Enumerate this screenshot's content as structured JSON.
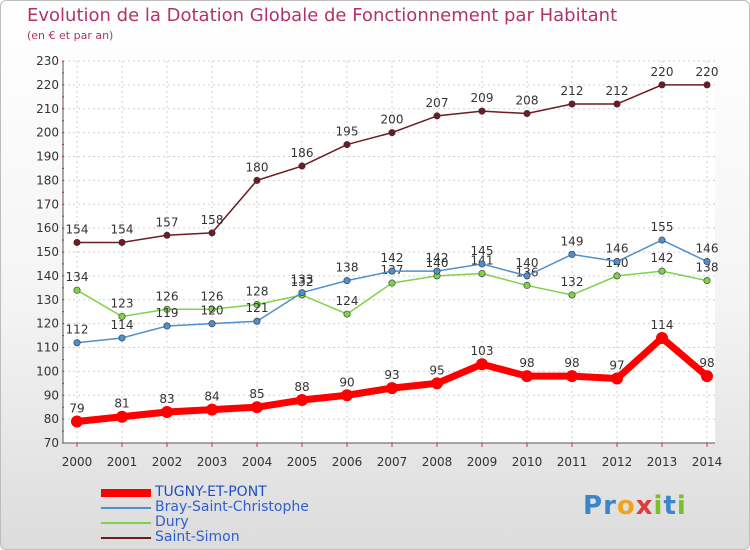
{
  "title": "Evolution de la Dotation Globale de Fonctionnement par Habitant",
  "subtitle": "(en € et par an)",
  "logo": {
    "letters": [
      {
        "ch": "P",
        "color": "#3a86c8"
      },
      {
        "ch": "r",
        "color": "#3a86c8"
      },
      {
        "ch": "o",
        "color": "#f0a31d"
      },
      {
        "ch": "x",
        "color": "#e23a3a"
      },
      {
        "ch": "i",
        "color": "#7bbf2a"
      },
      {
        "ch": "t",
        "color": "#3a86c8"
      },
      {
        "ch": "i",
        "color": "#7bbf2a"
      }
    ]
  },
  "chart_data": {
    "type": "line",
    "title": "Evolution de la Dotation Globale de Fonctionnement par Habitant",
    "subtitle": "(en € et par an)",
    "xlabel": "",
    "ylabel": "",
    "x": [
      "2000",
      "2001",
      "2002",
      "2003",
      "2004",
      "2005",
      "2006",
      "2007",
      "2008",
      "2009",
      "2010",
      "2011",
      "2012",
      "2013",
      "2014"
    ],
    "ylim": [
      70,
      230
    ],
    "yticks": [
      70,
      80,
      90,
      100,
      110,
      120,
      130,
      140,
      150,
      160,
      170,
      180,
      190,
      200,
      210,
      220,
      230
    ],
    "grid": true,
    "legend_position": "bottom-left",
    "series": [
      {
        "name": "TUGNY-ET-PONT",
        "color": "#ff0000",
        "values": [
          79,
          81,
          83,
          84,
          85,
          88,
          90,
          93,
          95,
          103,
          98,
          98,
          97,
          114,
          98
        ]
      },
      {
        "name": "Bray-Saint-Christophe",
        "color": "#4f8fcf",
        "values": [
          112,
          114,
          119,
          120,
          121,
          133,
          138,
          142,
          142,
          145,
          140,
          149,
          146,
          155,
          146
        ]
      },
      {
        "name": "Dury",
        "color": "#7fd24a",
        "values": [
          134,
          123,
          126,
          126,
          128,
          132,
          124,
          137,
          140,
          141,
          136,
          132,
          140,
          142,
          138
        ]
      },
      {
        "name": "Saint-Simon",
        "color": "#6e1c22",
        "values": [
          154,
          154,
          157,
          158,
          180,
          186,
          195,
          200,
          207,
          209,
          208,
          212,
          212,
          220,
          220
        ]
      }
    ]
  }
}
